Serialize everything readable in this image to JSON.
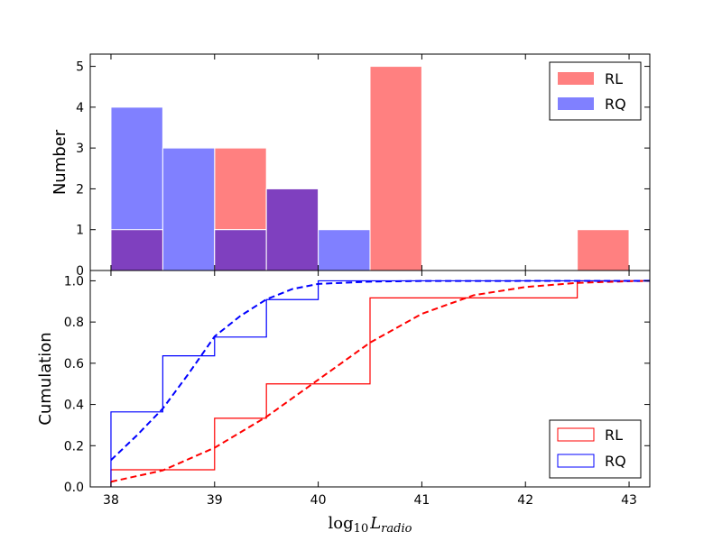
{
  "chart_data": [
    {
      "type": "bar",
      "subtype": "overlapping-histogram",
      "ylabel": "Number",
      "xlim": [
        37.8,
        43.2
      ],
      "ylim": [
        0,
        5.3
      ],
      "yticks": [
        "0",
        "1",
        "2",
        "3",
        "4",
        "5"
      ],
      "legend": {
        "placement": "top-right",
        "entries": [
          "RL",
          "RQ"
        ]
      },
      "series": [
        {
          "name": "RL",
          "color": "#ff8080",
          "bins": [
            {
              "x0": 38.0,
              "x1": 38.5,
              "value": 1
            },
            {
              "x0": 39.0,
              "x1": 39.5,
              "value": 3
            },
            {
              "x0": 39.5,
              "x1": 40.0,
              "value": 2
            },
            {
              "x0": 40.5,
              "x1": 41.0,
              "value": 5
            },
            {
              "x0": 42.5,
              "x1": 43.0,
              "value": 1
            }
          ]
        },
        {
          "name": "RQ",
          "color": "#8080ff",
          "bins": [
            {
              "x0": 38.0,
              "x1": 38.5,
              "value": 4
            },
            {
              "x0": 38.5,
              "x1": 39.0,
              "value": 3
            },
            {
              "x0": 39.0,
              "x1": 39.5,
              "value": 1
            },
            {
              "x0": 39.5,
              "x1": 40.0,
              "value": 2
            },
            {
              "x0": 40.0,
              "x1": 40.5,
              "value": 1
            }
          ]
        }
      ],
      "overlap_color": "#7f40bf"
    },
    {
      "type": "line",
      "subtype": "cumulative-distribution",
      "ylabel": "Cumulation",
      "xlabel": "log10 L_radio",
      "xlabel_display": {
        "base": "log",
        "sub": "10",
        "var": "L",
        "var_sub": "radio"
      },
      "xlim": [
        37.8,
        43.2
      ],
      "ylim": [
        0,
        1.05
      ],
      "xticks": [
        "38",
        "39",
        "40",
        "41",
        "42",
        "43"
      ],
      "yticks": [
        "0.0",
        "0.2",
        "0.4",
        "0.6",
        "0.8",
        "1.0"
      ],
      "legend": {
        "placement": "bottom-right",
        "entries": [
          "RL",
          "RQ"
        ]
      },
      "series": [
        {
          "name": "RL",
          "color": "#ff0000",
          "style": "step",
          "x": [
            38.0,
            39.0,
            39.5,
            40.5,
            42.5,
            43.2
          ],
          "y": [
            0.083,
            0.333,
            0.5,
            0.917,
            1.0,
            1.0
          ]
        },
        {
          "name": "RQ",
          "color": "#0000ff",
          "style": "step",
          "x": [
            38.0,
            38.5,
            39.0,
            39.5,
            40.0,
            43.2
          ],
          "y": [
            0.364,
            0.636,
            0.727,
            0.909,
            1.0,
            1.0
          ]
        },
        {
          "name": "RL fit",
          "color": "#ff0000",
          "style": "dashed",
          "x": [
            38.0,
            38.5,
            39.0,
            39.5,
            40.0,
            40.5,
            41.0,
            41.5,
            42.0,
            42.5,
            43.0,
            43.2
          ],
          "y": [
            0.025,
            0.08,
            0.19,
            0.34,
            0.52,
            0.7,
            0.84,
            0.93,
            0.97,
            0.99,
            0.998,
            1.0
          ]
        },
        {
          "name": "RQ fit",
          "color": "#0000ff",
          "style": "dashed",
          "x": [
            38.0,
            38.25,
            38.5,
            38.75,
            39.0,
            39.25,
            39.5,
            39.75,
            40.0,
            40.5,
            41.0,
            43.2
          ],
          "y": [
            0.13,
            0.25,
            0.38,
            0.55,
            0.73,
            0.83,
            0.91,
            0.96,
            0.985,
            0.996,
            0.999,
            1.0
          ]
        }
      ]
    }
  ]
}
